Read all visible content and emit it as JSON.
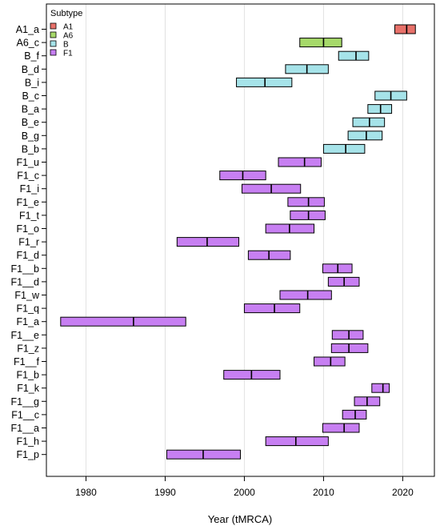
{
  "chart_data": {
    "type": "range-bar",
    "xlabel": "Year (tMRCA)",
    "xlim": [
      1975,
      2024
    ],
    "xticks": [
      1980,
      1990,
      2000,
      2010,
      2020
    ],
    "grid": "vertical",
    "legend": {
      "title": "Subtype",
      "position": "top-left",
      "entries": [
        {
          "name": "A1",
          "color": "#e8716a"
        },
        {
          "name": "A6",
          "color": "#a6d96a"
        },
        {
          "name": "B",
          "color": "#a6e3e9"
        },
        {
          "name": "F1",
          "color": "#c77ff2"
        }
      ]
    },
    "rows": [
      {
        "label": "A1_a",
        "subtype": "A1",
        "low": 2019.0,
        "mid": 2020.5,
        "high": 2021.6
      },
      {
        "label": "A6_c",
        "subtype": "A6",
        "low": 2007.0,
        "mid": 2010.0,
        "high": 2012.3
      },
      {
        "label": "B_f",
        "subtype": "B",
        "low": 2011.9,
        "mid": 2014.1,
        "high": 2015.7
      },
      {
        "label": "B_d",
        "subtype": "B",
        "low": 2005.2,
        "mid": 2007.9,
        "high": 2010.6
      },
      {
        "label": "B_i",
        "subtype": "B",
        "low": 1999.0,
        "mid": 2002.6,
        "high": 2006.0
      },
      {
        "label": "B_c",
        "subtype": "B",
        "low": 2016.5,
        "mid": 2018.5,
        "high": 2020.5
      },
      {
        "label": "B_a",
        "subtype": "B",
        "low": 2015.6,
        "mid": 2017.2,
        "high": 2018.6
      },
      {
        "label": "B_e",
        "subtype": "B",
        "low": 2013.7,
        "mid": 2015.8,
        "high": 2017.7
      },
      {
        "label": "B_g",
        "subtype": "B",
        "low": 2013.1,
        "mid": 2015.4,
        "high": 2017.4
      },
      {
        "label": "B_b",
        "subtype": "B",
        "low": 2010.0,
        "mid": 2012.8,
        "high": 2015.2
      },
      {
        "label": "F1_u",
        "subtype": "F1",
        "low": 2004.3,
        "mid": 2007.6,
        "high": 2009.7
      },
      {
        "label": "F1_c",
        "subtype": "F1",
        "low": 1996.9,
        "mid": 1999.8,
        "high": 2002.7
      },
      {
        "label": "F1_i",
        "subtype": "F1",
        "low": 1999.7,
        "mid": 2003.4,
        "high": 2007.1
      },
      {
        "label": "F1_e",
        "subtype": "F1",
        "low": 2005.5,
        "mid": 2008.1,
        "high": 2010.1
      },
      {
        "label": "F1_t",
        "subtype": "F1",
        "low": 2005.8,
        "mid": 2008.1,
        "high": 2010.2
      },
      {
        "label": "F1_o",
        "subtype": "F1",
        "low": 2002.7,
        "mid": 2005.7,
        "high": 2008.8
      },
      {
        "label": "F1_r",
        "subtype": "F1",
        "low": 1991.5,
        "mid": 1995.3,
        "high": 1999.3
      },
      {
        "label": "F1_d",
        "subtype": "F1",
        "low": 2000.5,
        "mid": 2003.1,
        "high": 2005.8
      },
      {
        "label": "F1__b",
        "subtype": "F1",
        "low": 2009.9,
        "mid": 2011.8,
        "high": 2013.6
      },
      {
        "label": "F1__d",
        "subtype": "F1",
        "low": 2010.6,
        "mid": 2012.6,
        "high": 2014.5
      },
      {
        "label": "F1_w",
        "subtype": "F1",
        "low": 2004.5,
        "mid": 2008.0,
        "high": 2011.0
      },
      {
        "label": "F1_q",
        "subtype": "F1",
        "low": 2000.0,
        "mid": 2003.8,
        "high": 2007.0
      },
      {
        "label": "F1_a",
        "subtype": "F1",
        "low": 1976.8,
        "mid": 1986.0,
        "high": 1992.6
      },
      {
        "label": "F1__e",
        "subtype": "F1",
        "low": 2011.1,
        "mid": 2013.2,
        "high": 2015.0
      },
      {
        "label": "F1_z",
        "subtype": "F1",
        "low": 2011.0,
        "mid": 2013.2,
        "high": 2015.6
      },
      {
        "label": "F1__f",
        "subtype": "F1",
        "low": 2008.8,
        "mid": 2010.9,
        "high": 2012.7
      },
      {
        "label": "F1_b",
        "subtype": "F1",
        "low": 1997.4,
        "mid": 2000.9,
        "high": 2004.5
      },
      {
        "label": "F1_k",
        "subtype": "F1",
        "low": 2016.1,
        "mid": 2017.5,
        "high": 2018.3
      },
      {
        "label": "F1__g",
        "subtype": "F1",
        "low": 2013.9,
        "mid": 2015.5,
        "high": 2017.1
      },
      {
        "label": "F1__c",
        "subtype": "F1",
        "low": 2012.4,
        "mid": 2014.0,
        "high": 2015.4
      },
      {
        "label": "F1__a",
        "subtype": "F1",
        "low": 2009.9,
        "mid": 2012.6,
        "high": 2014.5
      },
      {
        "label": "F1_h",
        "subtype": "F1",
        "low": 2002.7,
        "mid": 2006.5,
        "high": 2010.6
      },
      {
        "label": "F1_p",
        "subtype": "F1",
        "low": 1990.2,
        "mid": 1994.8,
        "high": 1999.5
      }
    ]
  }
}
